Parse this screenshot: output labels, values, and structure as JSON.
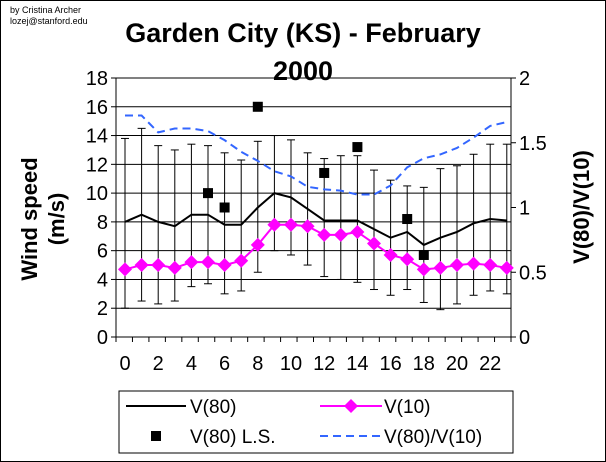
{
  "credit": [
    "by Cristina Archer",
    "lozej@stanford.edu"
  ],
  "chart_data": {
    "type": "line",
    "title_lines": [
      "Garden City (KS) - February",
      "2000"
    ],
    "ylabel_left": [
      "Wind speed",
      "(m/s)"
    ],
    "ylabel_right": "V(80)/V(10)",
    "x": [
      0,
      1,
      2,
      3,
      4,
      5,
      6,
      7,
      8,
      9,
      10,
      11,
      12,
      13,
      14,
      15,
      16,
      17,
      18,
      19,
      20,
      21,
      22,
      23
    ],
    "xticks": [
      0,
      2,
      4,
      6,
      8,
      10,
      12,
      14,
      16,
      18,
      20,
      22
    ],
    "ylim_left": [
      0,
      18
    ],
    "yticks_left": [
      0,
      2,
      4,
      6,
      8,
      10,
      12,
      14,
      16,
      18
    ],
    "ylim_right": [
      0,
      2
    ],
    "yticks_right": [
      0,
      0.5,
      1,
      1.5,
      2
    ],
    "grid": "horizontal",
    "legend_position": "bottom",
    "series": [
      {
        "name": "V(80)",
        "axis": "left",
        "style": "solid-black",
        "values": [
          8.0,
          8.5,
          8.0,
          7.7,
          8.5,
          8.5,
          7.8,
          7.8,
          9.0,
          10.0,
          9.7,
          8.9,
          8.1,
          8.1,
          8.1,
          7.5,
          6.9,
          7.3,
          6.4,
          6.9,
          7.3,
          7.9,
          8.2,
          8.1
        ],
        "error_low": [
          2.0,
          2.5,
          2.3,
          2.5,
          3.5,
          3.7,
          3.0,
          3.2,
          4.5,
          6.0,
          5.7,
          5.0,
          4.2,
          4.0,
          3.8,
          3.3,
          2.9,
          3.3,
          2.4,
          1.9,
          2.3,
          2.9,
          3.2,
          3.0
        ],
        "error_high": [
          13.8,
          14.5,
          13.3,
          13.0,
          13.4,
          13.3,
          12.8,
          12.3,
          13.6,
          14.0,
          13.7,
          12.8,
          12.4,
          12.6,
          12.6,
          11.6,
          10.9,
          10.5,
          10.4,
          11.7,
          11.9,
          12.7,
          13.4,
          13.4
        ]
      },
      {
        "name": "V(10)",
        "axis": "left",
        "style": "magenta-diamond",
        "values": [
          4.7,
          5.0,
          5.0,
          4.8,
          5.2,
          5.2,
          5.0,
          5.3,
          6.4,
          7.8,
          7.8,
          7.7,
          7.1,
          7.1,
          7.3,
          6.5,
          5.7,
          5.4,
          4.7,
          4.8,
          5.0,
          5.1,
          5.0,
          4.8
        ]
      },
      {
        "name": "V(80) L.S.",
        "axis": "left",
        "style": "black-square",
        "x": [
          5,
          6,
          8,
          12,
          14,
          17,
          18
        ],
        "values": [
          10.0,
          9.0,
          16.0,
          11.4,
          13.2,
          8.2,
          5.7
        ]
      },
      {
        "name": "V(80)/V(10)",
        "axis": "right",
        "style": "blue-dashed",
        "values": [
          1.71,
          1.71,
          1.58,
          1.61,
          1.61,
          1.59,
          1.52,
          1.43,
          1.36,
          1.28,
          1.24,
          1.16,
          1.14,
          1.13,
          1.1,
          1.1,
          1.17,
          1.31,
          1.38,
          1.41,
          1.46,
          1.54,
          1.63,
          1.66
        ]
      }
    ]
  },
  "colors": {
    "v80": "#000000",
    "v10": "#ff00ff",
    "ls": "#000000",
    "ratio": "#3366ff",
    "grid": "#000000"
  }
}
